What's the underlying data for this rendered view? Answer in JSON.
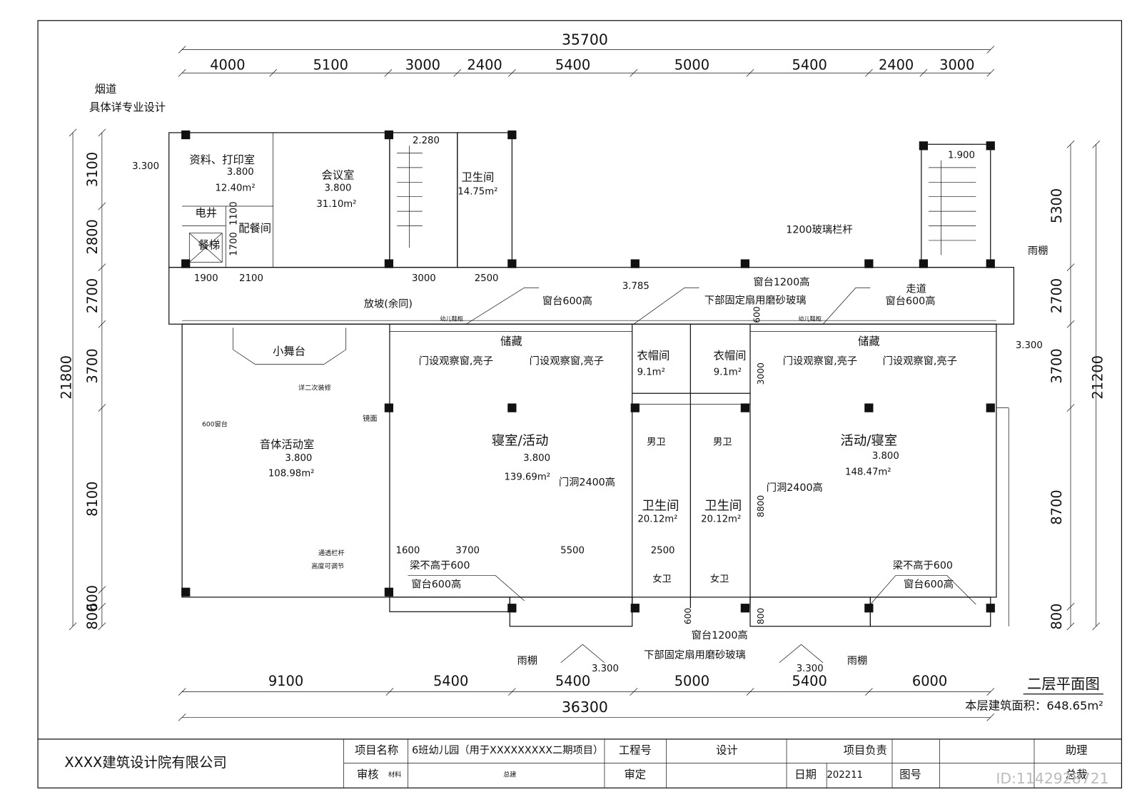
{
  "drawing_title": "二层平面图",
  "area_note": "本层建筑面积：648.65m²",
  "dimensions": {
    "top_total": "35700",
    "top": [
      "4000",
      "5100",
      "3000",
      "2400",
      "5400",
      "5000",
      "5400",
      "2400",
      "3000"
    ],
    "bottom": [
      "9100",
      "5400",
      "5400",
      "5000",
      "5400",
      "6000"
    ],
    "bottom_total": "36300",
    "left_total": "21800",
    "left": [
      "3100",
      "2800",
      "2700",
      "3700",
      "8100",
      "600",
      "800"
    ],
    "right_total": "21200",
    "right": [
      "5300",
      "2700",
      "3700",
      "8700",
      "800"
    ]
  },
  "labels": [
    "烟道",
    "具体详专业设计",
    "3.300",
    "资料、打印室",
    "3.800",
    "12.40m²",
    "会议室",
    "3.800",
    "31.10m²",
    "2.280",
    "卫生间",
    "14.75m²",
    "电井",
    "1100",
    "配餐间",
    "餐梯",
    "1700",
    "1.900",
    "1200玻璃栏杆",
    "雨棚",
    "1900",
    "2100",
    "3000",
    "2500",
    "3.785",
    "窗台1200高",
    "下部固定扇用磨砂玻璃",
    "走道",
    "窗台600高",
    "放坡(余同)",
    "窗台600高",
    "幼儿鞋柜",
    "幼儿鞋柜",
    "600",
    "3.300",
    "小舞台",
    "储藏",
    "储藏",
    "门设观察窗,亮子",
    "门设观察窗,亮子",
    "衣帽间",
    "9.1m²",
    "衣帽间",
    "9.1m²",
    "门设观察窗,亮子",
    "门设观察窗,亮子",
    "3000",
    "详二次装修",
    "600窗台",
    "镜面",
    "音体活动室",
    "3.800",
    "108.98m²",
    "寝室/活动",
    "3.800",
    "139.69m²",
    "男卫",
    "男卫",
    "活动/寝室",
    "3.800",
    "148.47m²",
    "门洞2400高",
    "门洞2400高",
    "8800",
    "卫生间",
    "20.12m²",
    "卫生间",
    "20.12m²",
    "通透栏杆",
    "高度可调节",
    "1600",
    "3700",
    "5500",
    "2500",
    "梁不高于600",
    "窗台600高",
    "女卫",
    "女卫",
    "梁不高于600",
    "窗台600高",
    "600",
    "800",
    "窗台1200高",
    "下部固定扇用磨砂玻璃",
    "雨棚",
    "3.300",
    "3.300",
    "雨棚"
  ],
  "title_block": {
    "company": "XXXX建筑设计院有限公司",
    "project_name_label": "项目名称",
    "project_name": "6班幼儿园（用于XXXXXXXXX二期项目）",
    "project_no_label": "工程号",
    "design_label": "设计",
    "project_lead_label": "项目负责",
    "assistant_label": "助理",
    "review_label": "审核",
    "material_label": "材料",
    "chief_arch_label": "总建",
    "approve_label": "审定",
    "date_label": "日期",
    "date": "202211",
    "drawing_no_label": "图号",
    "president_label": "总裁"
  },
  "watermark_id": "ID:1142928721"
}
